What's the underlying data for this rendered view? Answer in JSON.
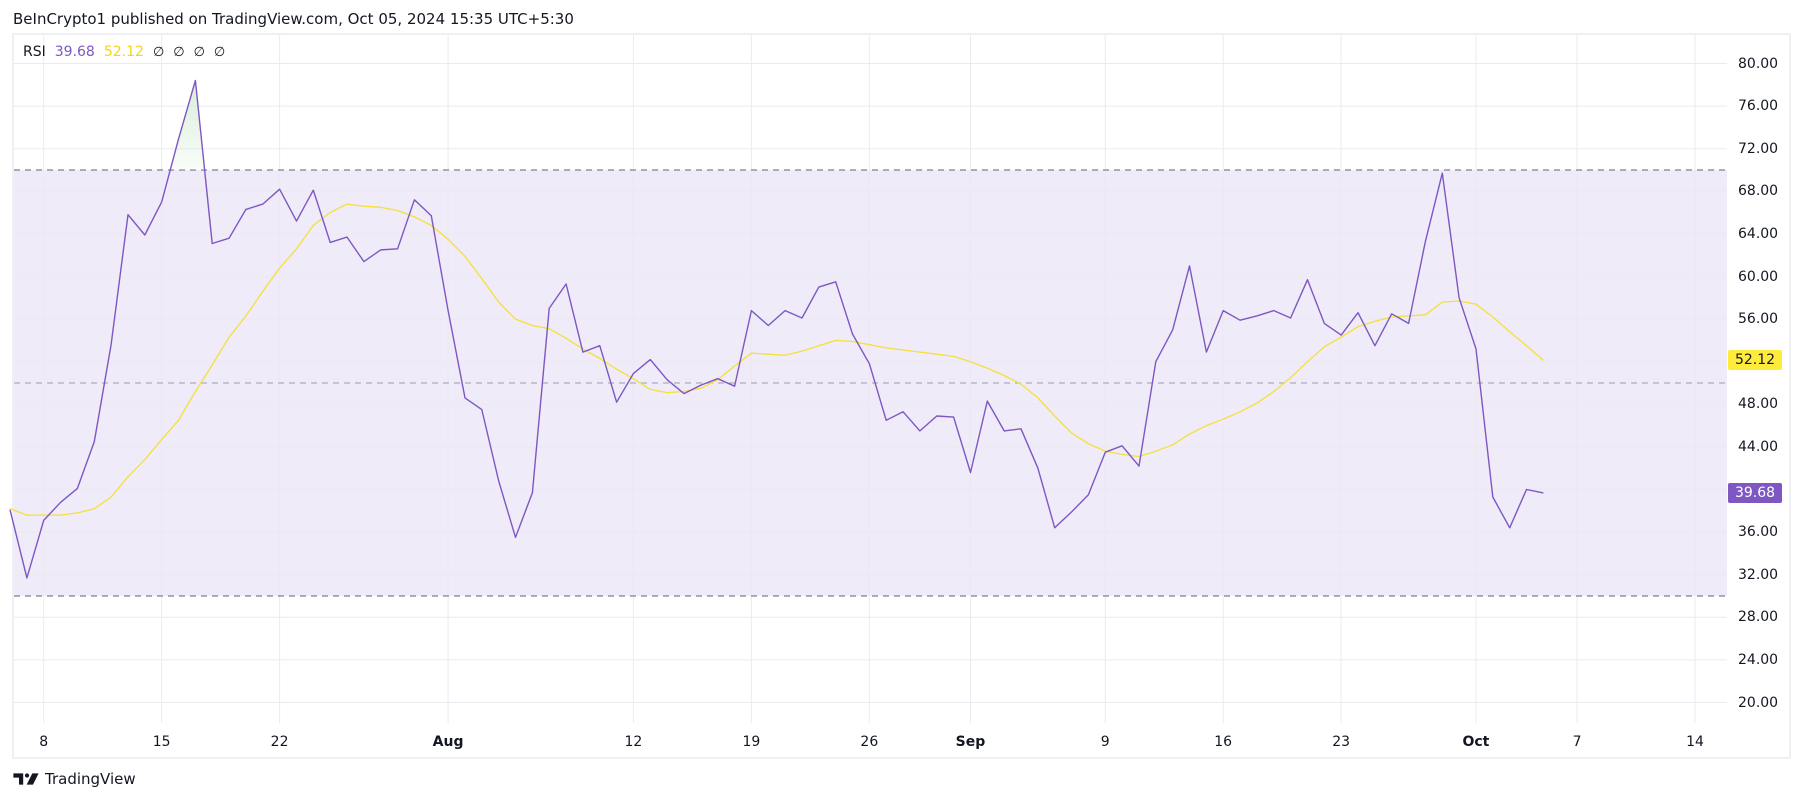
{
  "header": {
    "title": "BeInCrypto1 published on TradingView.com, Oct 05, 2024 15:35 UTC+5:30"
  },
  "legend": {
    "indicator_name": "RSI",
    "rsi_value": "39.68",
    "ma_value": "52.12",
    "na_values": [
      "∅",
      "∅",
      "∅",
      "∅"
    ]
  },
  "price_axis": {
    "labels": [
      "80.00",
      "76.00",
      "72.00",
      "68.00",
      "64.00",
      "60.00",
      "56.00",
      "52.00",
      "48.00",
      "44.00",
      "40.00",
      "36.00",
      "32.00",
      "28.00",
      "24.00",
      "20.00"
    ],
    "rsi_badge": "39.68",
    "ma_badge": "52.12"
  },
  "time_axis": {
    "labels": [
      {
        "text": "8",
        "day": 2,
        "bold": false
      },
      {
        "text": "15",
        "day": 9,
        "bold": false
      },
      {
        "text": "22",
        "day": 16,
        "bold": false
      },
      {
        "text": "Aug",
        "day": 26,
        "bold": true
      },
      {
        "text": "12",
        "day": 37,
        "bold": false
      },
      {
        "text": "19",
        "day": 44,
        "bold": false
      },
      {
        "text": "26",
        "day": 51,
        "bold": false
      },
      {
        "text": "Sep",
        "day": 57,
        "bold": true
      },
      {
        "text": "9",
        "day": 65,
        "bold": false
      },
      {
        "text": "16",
        "day": 72,
        "bold": false
      },
      {
        "text": "23",
        "day": 79,
        "bold": false
      },
      {
        "text": "Oct",
        "day": 87,
        "bold": true
      },
      {
        "text": "7",
        "day": 93,
        "bold": false
      },
      {
        "text": "14",
        "day": 100,
        "bold": false
      }
    ]
  },
  "brand": {
    "name": "TradingView"
  },
  "colors": {
    "rsi_line": "#7e57c2",
    "ma_line": "#f5e03a",
    "band_fill": "#efebf8",
    "band_border": "#787b86",
    "overbought_fill": "#d8eed8",
    "rsi_badge_bg": "#7e57c2",
    "ma_badge_bg": "#ffeb3b",
    "grid": "#ebeaf0"
  },
  "chart_data": {
    "type": "line",
    "title": "RSI",
    "xlabel": "",
    "ylabel": "",
    "ylim": [
      18,
      81
    ],
    "grid": true,
    "legend_position": "top-left",
    "x_start": "Jul 6, 2024",
    "x_end": "Oct 5, 2024",
    "x_ticks": [
      "8",
      "15",
      "22",
      "Aug",
      "12",
      "19",
      "26",
      "Sep",
      "9",
      "16",
      "23",
      "Oct",
      "7",
      "14"
    ],
    "y_ticks": [
      20,
      24,
      28,
      32,
      36,
      40,
      44,
      48,
      52,
      56,
      60,
      64,
      68,
      72,
      76,
      80
    ],
    "bands": {
      "upper": 70,
      "middle": 50,
      "lower": 30
    },
    "series": [
      {
        "name": "RSI",
        "color": "#7e57c2",
        "last_value": 39.68,
        "values": [
          38.1,
          31.7,
          37.1,
          38.8,
          40.1,
          44.5,
          53.6,
          65.8,
          63.9,
          67.0,
          72.9,
          78.4,
          63.1,
          63.6,
          66.3,
          66.8,
          68.2,
          65.2,
          68.1,
          63.2,
          63.7,
          61.4,
          62.5,
          62.6,
          67.2,
          65.7,
          56.8,
          48.6,
          47.5,
          40.8,
          35.5,
          39.7,
          57.0,
          59.3,
          52.9,
          53.5,
          48.2,
          50.9,
          52.2,
          50.3,
          49.0,
          49.8,
          50.4,
          49.7,
          56.8,
          55.4,
          56.8,
          56.1,
          59.0,
          59.5,
          54.6,
          51.8,
          46.5,
          47.3,
          45.5,
          46.9,
          46.8,
          41.6,
          48.3,
          45.5,
          45.7,
          42.0,
          36.4,
          37.9,
          39.5,
          43.5,
          44.1,
          42.2,
          52.0,
          55.0,
          61.0,
          52.9,
          56.8,
          55.9,
          56.3,
          56.8,
          56.1,
          59.7,
          55.6,
          54.5,
          56.6,
          53.5,
          56.5,
          55.6,
          63.3,
          69.7,
          58.0,
          53.2,
          39.3,
          36.4,
          40.0,
          39.68
        ]
      },
      {
        "name": "RSI-based MA",
        "color": "#f5e03a",
        "last_value": 52.12,
        "values": [
          38.2,
          37.6,
          37.6,
          37.6,
          37.8,
          38.2,
          39.3,
          41.2,
          42.8,
          44.7,
          46.5,
          49.2,
          51.7,
          54.3,
          56.3,
          58.6,
          60.8,
          62.6,
          64.8,
          66.0,
          66.8,
          66.6,
          66.5,
          66.2,
          65.6,
          64.8,
          63.5,
          61.9,
          59.8,
          57.6,
          56.0,
          55.4,
          55.1,
          54.2,
          53.2,
          52.3,
          51.3,
          50.4,
          49.4,
          49.1,
          49.2,
          49.5,
          50.3,
          51.6,
          52.8,
          52.7,
          52.6,
          53.0,
          53.5,
          54.0,
          53.9,
          53.6,
          53.3,
          53.1,
          52.9,
          52.7,
          52.5,
          52.0,
          51.4,
          50.7,
          49.9,
          48.6,
          46.9,
          45.3,
          44.3,
          43.6,
          43.3,
          43.1,
          43.6,
          44.2,
          45.2,
          46.0,
          46.6,
          47.3,
          48.1,
          49.2,
          50.5,
          52.0,
          53.4,
          54.3,
          55.3,
          55.8,
          56.2,
          56.3,
          56.4,
          57.6,
          57.7,
          57.4,
          56.2,
          54.8,
          53.5,
          52.12
        ]
      }
    ]
  }
}
